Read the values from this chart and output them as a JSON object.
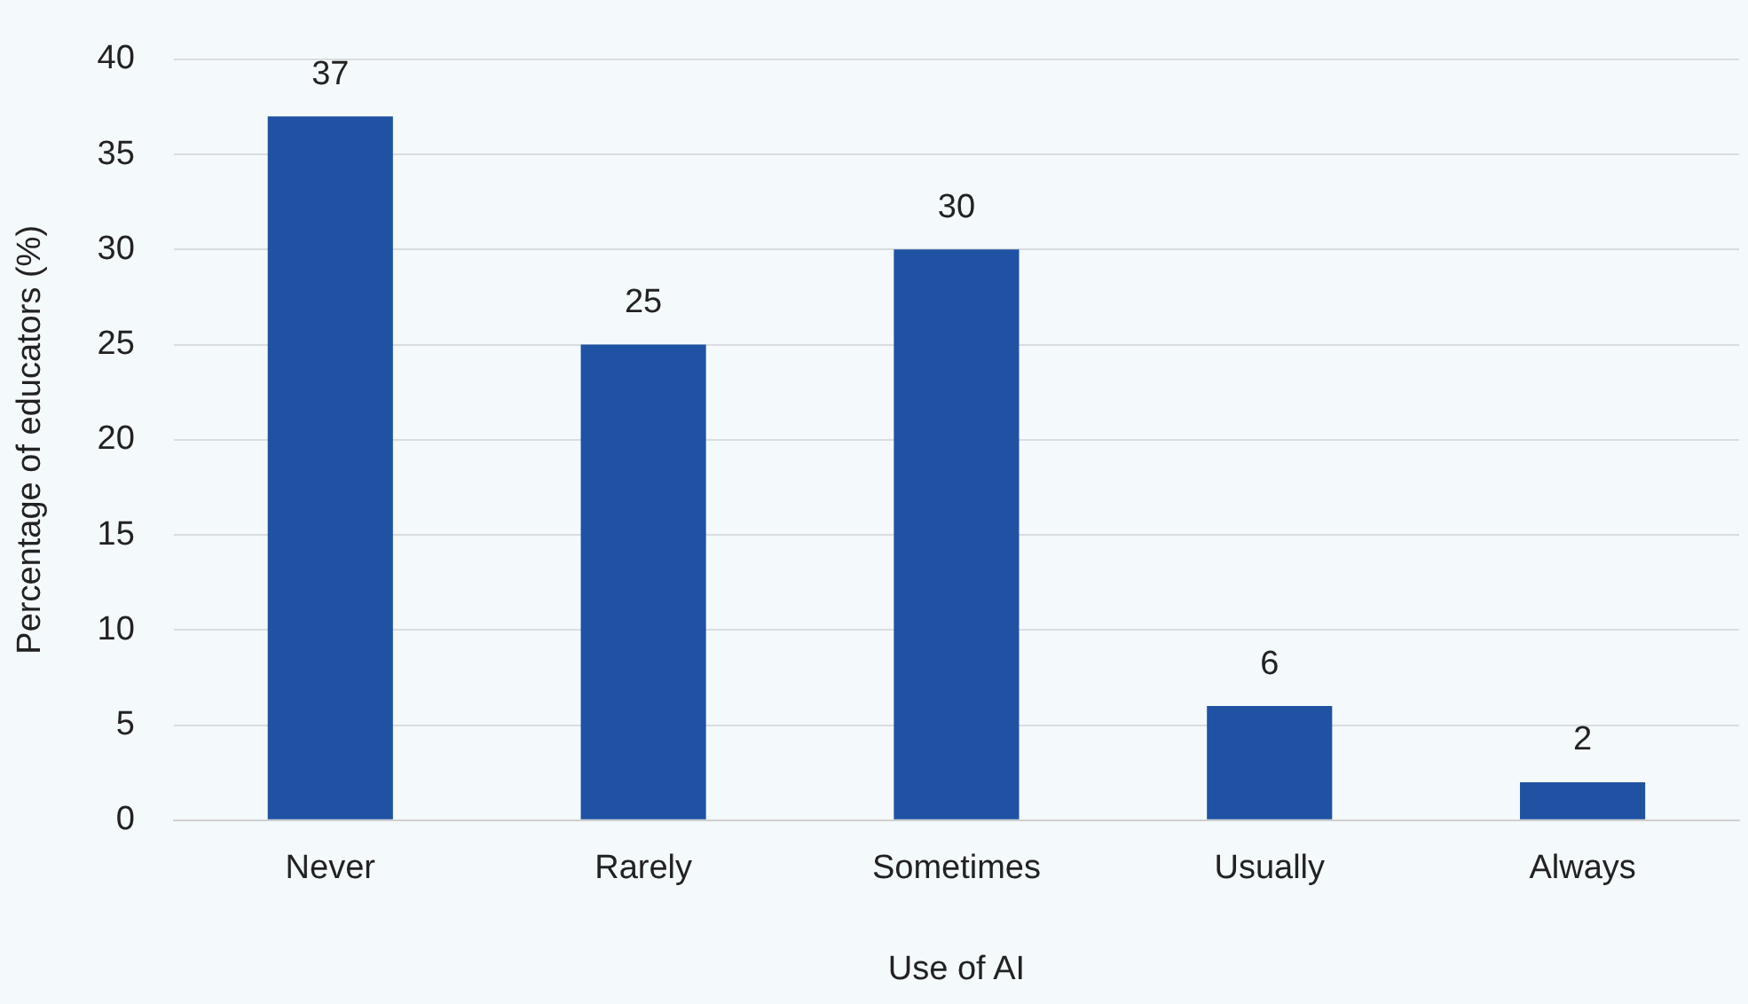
{
  "chart_data": {
    "type": "bar",
    "xlabel": "Use of AI",
    "ylabel": "Percentage of educators (%)",
    "categories": [
      "Never",
      "Rarely",
      "Sometimes",
      "Usually",
      "Always"
    ],
    "values": [
      37,
      25,
      30,
      6,
      2
    ],
    "color": "#1f52a3",
    "ylim": [
      0,
      40
    ],
    "yticks": [
      0,
      5,
      10,
      15,
      20,
      25,
      30,
      35,
      40
    ],
    "grid": "y",
    "data_labels": true,
    "legend": false
  }
}
